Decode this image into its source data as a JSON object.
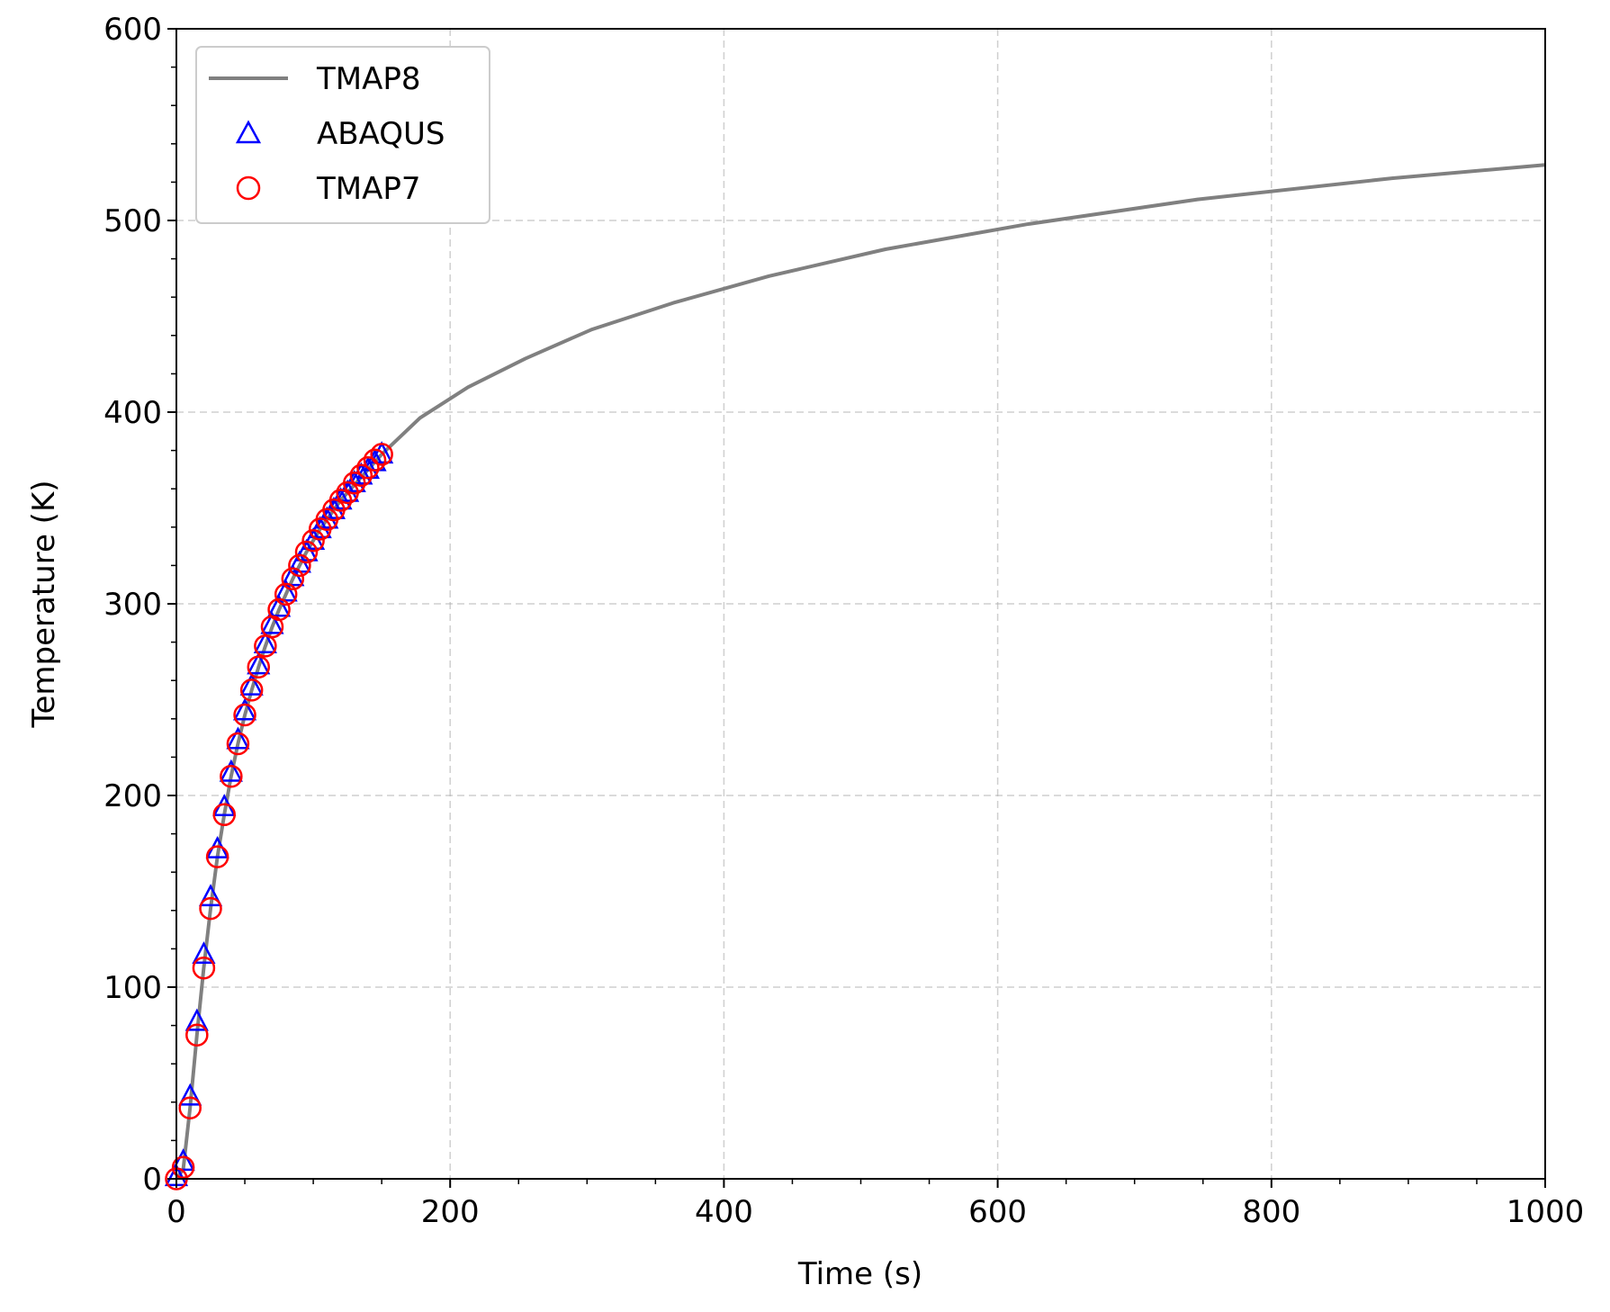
{
  "chart_data": {
    "type": "line",
    "title": "",
    "xlabel": "Time (s)",
    "ylabel": "Temperature (K)",
    "xlim": [
      0,
      1000
    ],
    "ylim": [
      0,
      600
    ],
    "xticks": [
      "0",
      "200",
      "400",
      "600",
      "800",
      "1000"
    ],
    "yticks": [
      "0",
      "100",
      "200",
      "300",
      "400",
      "500",
      "600"
    ],
    "grid": true,
    "legend_position": "top-left",
    "series": [
      {
        "name": "TMAP8",
        "kind": "line",
        "color": "#808080",
        "x": [
          0,
          5,
          10,
          15,
          20,
          25,
          30,
          35,
          40,
          45,
          50,
          55,
          60,
          65,
          70,
          75,
          80,
          85,
          90,
          95,
          100,
          105,
          110,
          115,
          120,
          125,
          130,
          135,
          140,
          145,
          150,
          178,
          213,
          255,
          303,
          363,
          433,
          518,
          621,
          746,
          888,
          1000
        ],
        "y": [
          0,
          5,
          37,
          75,
          110,
          141,
          168,
          190,
          210,
          227,
          242,
          255,
          267,
          278,
          288,
          297,
          305,
          313,
          320,
          327,
          333,
          339,
          344,
          349,
          354,
          358,
          362,
          366,
          370,
          374,
          378,
          397,
          413,
          428,
          443,
          457,
          471,
          485,
          498,
          511,
          522,
          529
        ]
      },
      {
        "name": "ABAQUS",
        "kind": "marker",
        "marker": "triangle",
        "color": "#0000ff",
        "x": [
          0,
          5,
          10,
          15,
          20,
          25,
          30,
          35,
          40,
          45,
          50,
          55,
          60,
          65,
          70,
          75,
          80,
          85,
          90,
          95,
          100,
          105,
          110,
          115,
          120,
          125,
          130,
          135,
          140,
          145,
          150
        ],
        "y": [
          1,
          9,
          43,
          82,
          117,
          147,
          172,
          194,
          212,
          229,
          244,
          257,
          268,
          279,
          289,
          298,
          306,
          314,
          321,
          327,
          333,
          339,
          344,
          349,
          354,
          358,
          363,
          367,
          370,
          374,
          378
        ]
      },
      {
        "name": "TMAP7",
        "kind": "marker",
        "marker": "circle",
        "color": "#ff0000",
        "x": [
          0,
          5,
          10,
          15,
          20,
          25,
          30,
          35,
          40,
          45,
          50,
          55,
          60,
          65,
          70,
          75,
          80,
          85,
          90,
          95,
          100,
          105,
          110,
          115,
          120,
          125,
          130,
          135,
          140,
          145,
          150
        ],
        "y": [
          0,
          6,
          37,
          75,
          110,
          141,
          168,
          190,
          210,
          227,
          242,
          255,
          267,
          278,
          288,
          297,
          305,
          313,
          320,
          327,
          333,
          339,
          344,
          349,
          354,
          358,
          363,
          367,
          371,
          375,
          378
        ]
      }
    ]
  }
}
